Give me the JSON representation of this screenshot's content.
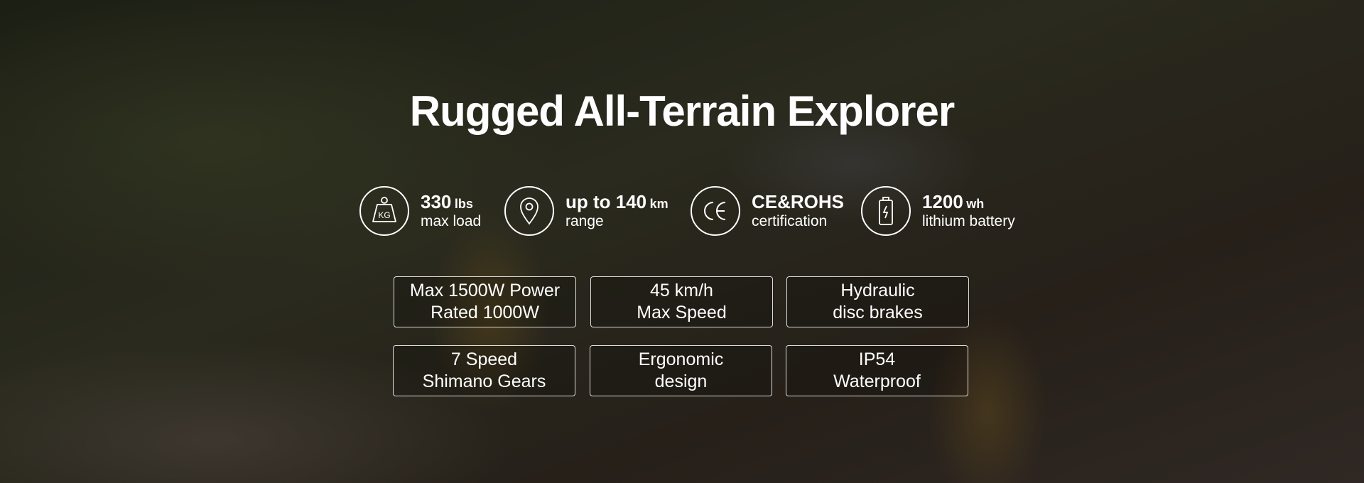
{
  "title": "Rugged All-Terrain Explorer",
  "features": [
    {
      "icon": "kg-weight-icon",
      "value": "330",
      "unit": "lbs",
      "label": "max load"
    },
    {
      "icon": "location-pin-icon",
      "value": "up to 140",
      "unit": "km",
      "label": "range"
    },
    {
      "icon": "ce-mark-icon",
      "value": "CE&ROHS",
      "unit": "",
      "label": "certification"
    },
    {
      "icon": "battery-icon",
      "value": "1200",
      "unit": "wh",
      "label": "lithium battery"
    }
  ],
  "specs": [
    {
      "line1": "Max 1500W Power",
      "line2": "Rated 1000W"
    },
    {
      "line1": "45 km/h",
      "line2": "Max Speed"
    },
    {
      "line1": "Hydraulic",
      "line2": "disc brakes"
    },
    {
      "line1": "7 Speed",
      "line2": "Shimano Gears"
    },
    {
      "line1": "Ergonomic",
      "line2": "design"
    },
    {
      "line1": "IP54",
      "line2": "Waterproof"
    }
  ]
}
